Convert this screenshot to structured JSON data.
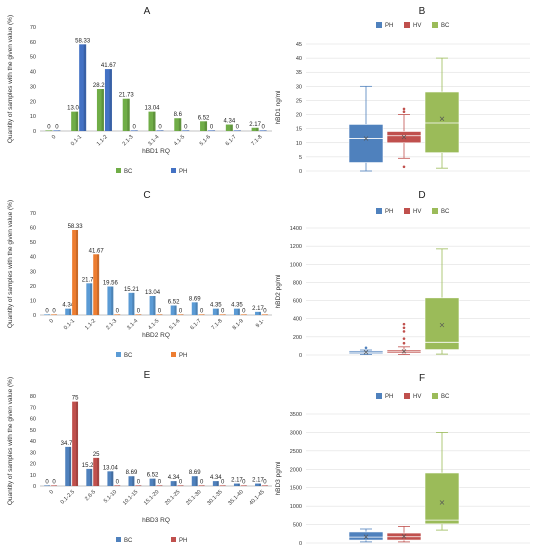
{
  "colors": {
    "BC": "#70ad47",
    "PH": "#4472c4",
    "PH_orange": "#ed7d31",
    "BC_lightblue": "#5b9bd5",
    "PH_red": "#c0504d",
    "box_blue": "#4f81bd",
    "box_red": "#c0504d",
    "box_green": "#9bbb59"
  },
  "chart_data": [
    {
      "id": "A",
      "letter": "A",
      "type": "bar",
      "xlabel": "hBD1 RQ",
      "ylabel": "Quantity of samples with the given value (%)",
      "ylim": [
        0,
        70
      ],
      "yticks": [
        0,
        10,
        20,
        30,
        40,
        50,
        60,
        70
      ],
      "categories": [
        "0",
        "0.1-1",
        "1.1-2",
        "2.1-3",
        "3.1-4",
        "4.1-5",
        "5.1-6",
        "6.1-7",
        "7.1-8"
      ],
      "series": [
        {
          "name": "BC",
          "color": "#70ad47",
          "values": [
            0,
            13.04,
            28.26,
            21.73,
            13.04,
            8.6,
            6.52,
            4.34,
            2.17
          ],
          "labels": [
            "0",
            "13.04",
            "28.26",
            "21.73",
            "13.04",
            "8.6",
            "6.52",
            "4.34",
            "2.17"
          ]
        },
        {
          "name": "PH",
          "color": "#4472c4",
          "values": [
            0,
            58.33,
            41.67,
            0,
            0,
            0,
            0,
            0,
            0
          ],
          "labels": [
            "0",
            "58.33",
            "41.67",
            "0",
            "0",
            "0",
            "0",
            "0",
            "0"
          ]
        }
      ]
    },
    {
      "id": "B",
      "letter": "B",
      "type": "box",
      "ylabel": "hBD1 ng/ml",
      "ylim": [
        0,
        45
      ],
      "yticks": [
        0,
        5,
        10,
        15,
        20,
        25,
        30,
        35,
        40,
        45
      ],
      "series": [
        {
          "name": "PH",
          "color": "#4f81bd",
          "min": 0,
          "q1": 3,
          "median": 11.5,
          "q3": 16.5,
          "max": 30,
          "mean": 11.5,
          "outliers": []
        },
        {
          "name": "HV",
          "color": "#c0504d",
          "min": 4.5,
          "q1": 10,
          "median": 12.5,
          "q3": 14,
          "max": 20,
          "mean": 12,
          "outliers": [
            1.5,
            21,
            22
          ]
        },
        {
          "name": "BC",
          "color": "#9bbb59",
          "min": 1,
          "q1": 6.5,
          "median": 17,
          "q3": 28,
          "max": 40,
          "mean": 18.5,
          "outliers": []
        }
      ]
    },
    {
      "id": "C",
      "letter": "C",
      "type": "bar",
      "xlabel": "hBD2 RQ",
      "ylabel": "Quantity of samples with the given value (%)",
      "ylim": [
        0,
        70
      ],
      "yticks": [
        0,
        10,
        20,
        30,
        40,
        50,
        60,
        70
      ],
      "categories": [
        "0",
        "0.1-1",
        "1.1-2",
        "2.1-3",
        "3.1-4",
        "4.1-5",
        "5.1-6",
        "6.1-7",
        "7.1-8",
        "8.1-9",
        "9.1-"
      ],
      "series": [
        {
          "name": "BC",
          "color": "#5b9bd5",
          "values": [
            0,
            4.34,
            21.74,
            19.56,
            15.21,
            13.04,
            6.52,
            8.69,
            4.35,
            4.35,
            2.17
          ],
          "labels": [
            "0",
            "4.34",
            "21.74",
            "19.56",
            "15.21",
            "13.04",
            "6.52",
            "8.69",
            "4.35",
            "4.35",
            "2.17"
          ]
        },
        {
          "name": "PH",
          "color": "#ed7d31",
          "values": [
            0,
            58.33,
            41.67,
            0,
            0,
            0,
            0,
            0,
            0,
            0,
            0
          ],
          "labels": [
            "0",
            "58.33",
            "41.67",
            "0",
            "0",
            "0",
            "0",
            "0",
            "0",
            "0",
            "0"
          ]
        }
      ]
    },
    {
      "id": "D",
      "letter": "D",
      "type": "box",
      "ylabel": "hBD2 pg/ml",
      "ylim": [
        0,
        1400
      ],
      "yticks": [
        0,
        200,
        400,
        600,
        800,
        1000,
        1200,
        1400
      ],
      "series": [
        {
          "name": "PH",
          "color": "#4f81bd",
          "min": 5,
          "q1": 15,
          "median": 30,
          "q3": 45,
          "max": 55,
          "mean": 30,
          "outliers": [
            80
          ]
        },
        {
          "name": "HV",
          "color": "#c0504d",
          "min": 5,
          "q1": 20,
          "median": 35,
          "q3": 55,
          "max": 90,
          "mean": 40,
          "outliers": [
            130,
            180,
            260,
            300,
            340
          ]
        },
        {
          "name": "BC",
          "color": "#9bbb59",
          "min": 10,
          "q1": 60,
          "median": 140,
          "q3": 630,
          "max": 1170,
          "mean": 330,
          "outliers": []
        }
      ]
    },
    {
      "id": "E",
      "letter": "E",
      "type": "bar",
      "xlabel": "hBD3 RQ",
      "ylabel": "Quantity of samples with the given value (%)",
      "ylim": [
        0,
        80
      ],
      "yticks": [
        0,
        10,
        20,
        30,
        40,
        50,
        60,
        70,
        80
      ],
      "categories": [
        "0",
        "0.1-2.5",
        "2.6-5",
        "5.1-10",
        "10.1-15",
        "15.1-20",
        "20.1-25",
        "25.1-30",
        "30.1-35",
        "35.1-40",
        "40.1-45"
      ],
      "series": [
        {
          "name": "BC",
          "color": "#4f81bd",
          "values": [
            0,
            34.78,
            15.21,
            13.04,
            8.69,
            6.52,
            4.34,
            8.69,
            4.34,
            2.17,
            2.17
          ],
          "labels": [
            "0",
            "34.78",
            "15.21",
            "13.04",
            "8.69",
            "6.52",
            "4.34",
            "8.69",
            "4.34",
            "2.17",
            "2.17"
          ]
        },
        {
          "name": "PH",
          "color": "#c0504d",
          "values": [
            0,
            75,
            25,
            0,
            0,
            0,
            0,
            0,
            0,
            0,
            0
          ],
          "labels": [
            "0",
            "75",
            "25",
            "0",
            "0",
            "0",
            "0",
            "0",
            "0",
            "0",
            "0"
          ]
        }
      ]
    },
    {
      "id": "F",
      "letter": "F",
      "type": "box",
      "ylabel": "hBD3 pg/ml",
      "ylim": [
        0,
        3500
      ],
      "yticks": [
        0,
        500,
        1000,
        1500,
        2000,
        2500,
        3000,
        3500
      ],
      "series": [
        {
          "name": "PH",
          "color": "#4f81bd",
          "min": 30,
          "q1": 80,
          "median": 160,
          "q3": 300,
          "max": 380,
          "mean": 170,
          "outliers": []
        },
        {
          "name": "HV",
          "color": "#c0504d",
          "min": 30,
          "q1": 80,
          "median": 170,
          "q3": 270,
          "max": 450,
          "mean": 180,
          "outliers": []
        },
        {
          "name": "BC",
          "color": "#9bbb59",
          "min": 350,
          "q1": 520,
          "median": 620,
          "q3": 1900,
          "max": 3000,
          "mean": 1100,
          "outliers": []
        }
      ]
    }
  ]
}
